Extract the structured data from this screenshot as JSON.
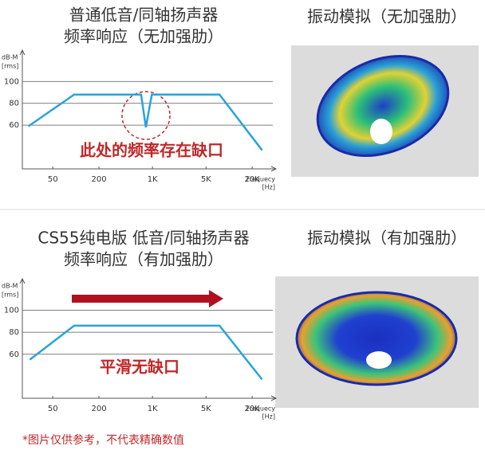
{
  "chart_data": [
    {
      "type": "line",
      "title": [
        "普通低音/同轴扬声器",
        "频率响应（无加强肋）"
      ],
      "y_label": [
        "dB-M",
        "[rms]"
      ],
      "x_label": [
        "Frequecy",
        "[Hz]"
      ],
      "x_scale": "log",
      "xlim": [
        20,
        40000
      ],
      "xticks": [
        50,
        200,
        {
          "value": 1000,
          "label": "1K"
        },
        {
          "value": 5000,
          "label": "5K"
        },
        {
          "value": 20000,
          "label": "20K"
        }
      ],
      "ylim": [
        20,
        125
      ],
      "yticks": [
        60,
        80,
        100
      ],
      "grid": true,
      "series": [
        {
          "color": "#29a3dc",
          "x": [
            24,
            95,
            710,
            820,
            980,
            7500,
            27000
          ],
          "values": [
            59,
            88,
            88,
            58,
            88,
            88,
            37
          ]
        }
      ],
      "annotation": "此处的频率存在缺口"
    },
    {
      "type": "line",
      "title": [
        "CS55纯电版 低音/同轴扬声器",
        "频率响应（有加强肋）"
      ],
      "y_label": [
        "dB-M",
        "[rms]"
      ],
      "x_label": [
        "Frequecy",
        "[Hz]"
      ],
      "x_scale": "log",
      "xlim": [
        20,
        40000
      ],
      "xticks": [
        50,
        200,
        {
          "value": 1000,
          "label": "1K"
        },
        {
          "value": 5000,
          "label": "5K"
        },
        {
          "value": 20000,
          "label": "20K"
        }
      ],
      "ylim": [
        20,
        125
      ],
      "yticks": [
        60,
        80,
        100
      ],
      "grid": true,
      "series": [
        {
          "color": "#29a3dc",
          "x": [
            25,
            95,
            7500,
            27000
          ],
          "values": [
            55,
            86,
            86,
            37
          ]
        }
      ],
      "annotation": "平滑无缺口"
    }
  ],
  "simulation_titles": [
    "振动模拟（无加强肋）",
    "振动模拟（有加强肋）"
  ],
  "footnote": "*图片仅供参考，不代表精确数值"
}
